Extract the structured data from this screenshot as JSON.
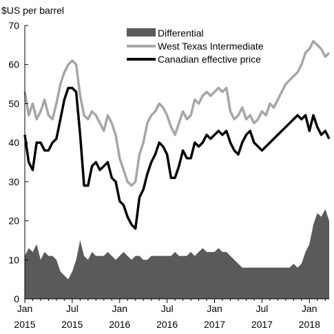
{
  "chart_data": {
    "type": "line",
    "title": "",
    "ylabel": "$US per barrel",
    "xlabel": "",
    "ylim": [
      0,
      70
    ],
    "yticks": [
      0,
      10,
      20,
      30,
      40,
      50,
      60,
      70
    ],
    "xrange_month_index": [
      0,
      38.5
    ],
    "xticks": [
      {
        "label": "Jan",
        "year": "2015",
        "month_index": 0
      },
      {
        "label": "Jul",
        "year": "2015",
        "month_index": 6
      },
      {
        "label": "Jan",
        "year": "2016",
        "month_index": 12
      },
      {
        "label": "Jul",
        "year": "2016",
        "month_index": 18
      },
      {
        "label": "Jan",
        "year": "2017",
        "month_index": 24
      },
      {
        "label": "Jul",
        "year": "2017",
        "month_index": 30
      },
      {
        "label": "Jan",
        "year": "2018",
        "month_index": 36
      }
    ],
    "legend": {
      "placement": "top-right"
    },
    "x_month_index": [
      0,
      0.5,
      1,
      1.5,
      2,
      2.5,
      3,
      3.5,
      4,
      4.5,
      5,
      5.5,
      6,
      6.5,
      7,
      7.5,
      8,
      8.5,
      9,
      9.5,
      10,
      10.5,
      11,
      11.5,
      12,
      12.5,
      13,
      13.5,
      14,
      14.5,
      15,
      15.5,
      16,
      16.5,
      17,
      17.5,
      18,
      18.5,
      19,
      19.5,
      20,
      20.5,
      21,
      21.5,
      22,
      22.5,
      23,
      23.5,
      24,
      24.5,
      25,
      25.5,
      26,
      26.5,
      27,
      27.5,
      28,
      28.5,
      29,
      29.5,
      30,
      30.5,
      31,
      31.5,
      32,
      32.5,
      33,
      33.5,
      34,
      34.5,
      35,
      35.5,
      36,
      36.5,
      37,
      37.5,
      38,
      38.5
    ],
    "series": [
      {
        "name": "Differential",
        "style": "area",
        "color": "#5a5a5a",
        "values": [
          11,
          13,
          12,
          14,
          10,
          12,
          11,
          11,
          10,
          7,
          6,
          5,
          7,
          10,
          15,
          11,
          10,
          12,
          11,
          11,
          11,
          12,
          11,
          10,
          11,
          12,
          11,
          10,
          11,
          11,
          10,
          10,
          11,
          11,
          11,
          11,
          11,
          11,
          12,
          11,
          11,
          11,
          12,
          11,
          12,
          13,
          12,
          12,
          12,
          13,
          12,
          12,
          11,
          10,
          9,
          8,
          8,
          8,
          8,
          8,
          8,
          8,
          8,
          8,
          8,
          8,
          8,
          8,
          9,
          8,
          9,
          12,
          14,
          19,
          22,
          21,
          23,
          20
        ]
      },
      {
        "name": "West Texas Intermediate",
        "style": "line",
        "color": "#a6a6a6",
        "values": [
          53,
          47,
          50,
          46,
          48,
          51,
          47,
          46,
          50,
          55,
          58,
          60,
          61,
          60,
          52,
          47,
          46,
          48,
          47,
          45,
          43,
          47,
          45,
          42,
          36,
          33,
          30,
          29,
          30,
          37,
          40,
          45,
          47,
          48,
          50,
          49,
          47,
          44,
          42,
          45,
          48,
          46,
          47,
          51,
          50,
          52,
          53,
          52,
          53,
          54,
          53,
          54,
          48,
          46,
          47,
          49,
          46,
          47,
          45,
          46,
          48,
          47,
          50,
          49,
          51,
          53,
          55,
          56,
          57,
          58,
          60,
          63,
          64,
          66,
          65,
          64,
          62,
          63
        ]
      },
      {
        "name": "Canadian effective price",
        "style": "line",
        "color": "#000000",
        "values": [
          42,
          35,
          33,
          40,
          40,
          38,
          38,
          40,
          41,
          46,
          51,
          54,
          54,
          53,
          42,
          29,
          29,
          34,
          35,
          33,
          34,
          35,
          31,
          30,
          25,
          24,
          21,
          19,
          18,
          26,
          28,
          32,
          35,
          37,
          40,
          39,
          37,
          31,
          31,
          34,
          38,
          36,
          36,
          40,
          39,
          40,
          42,
          41,
          42,
          43,
          42,
          43,
          40,
          38,
          37,
          40,
          42,
          43,
          40,
          39,
          38,
          39,
          40,
          41,
          42,
          43,
          44,
          45,
          46,
          47,
          46,
          47,
          43,
          47,
          44,
          42,
          43,
          41
        ]
      }
    ]
  }
}
